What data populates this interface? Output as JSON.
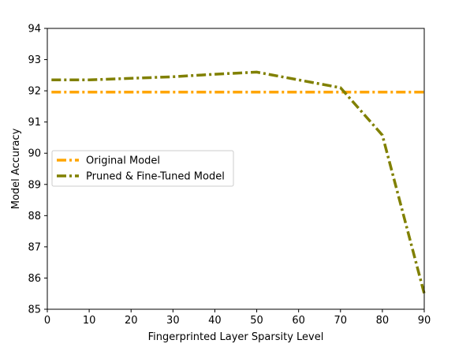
{
  "chart_data": {
    "type": "line",
    "title": "",
    "xlabel": "Fingerprinted Layer Sparsity Level",
    "ylabel": "Model Accuracy",
    "xlim": [
      0,
      90
    ],
    "ylim": [
      85,
      94
    ],
    "x_ticks": [
      0,
      10,
      20,
      30,
      40,
      50,
      60,
      70,
      80,
      90
    ],
    "y_ticks": [
      85,
      86,
      87,
      88,
      89,
      90,
      91,
      92,
      93,
      94
    ],
    "grid": false,
    "legend_position": "center-left",
    "series": [
      {
        "name": "Original Model",
        "color": "#FFA500",
        "line_style": "dash-dot",
        "x": [
          1,
          90
        ],
        "y": [
          91.96,
          91.96
        ]
      },
      {
        "name": "Pruned & Fine-Tuned Model",
        "color": "#808000",
        "line_style": "dash-dot",
        "x": [
          1,
          10,
          20,
          30,
          40,
          50,
          60,
          70,
          80,
          90
        ],
        "y": [
          92.35,
          92.35,
          92.4,
          92.45,
          92.53,
          92.6,
          92.35,
          92.1,
          90.58,
          85.5
        ]
      }
    ]
  }
}
